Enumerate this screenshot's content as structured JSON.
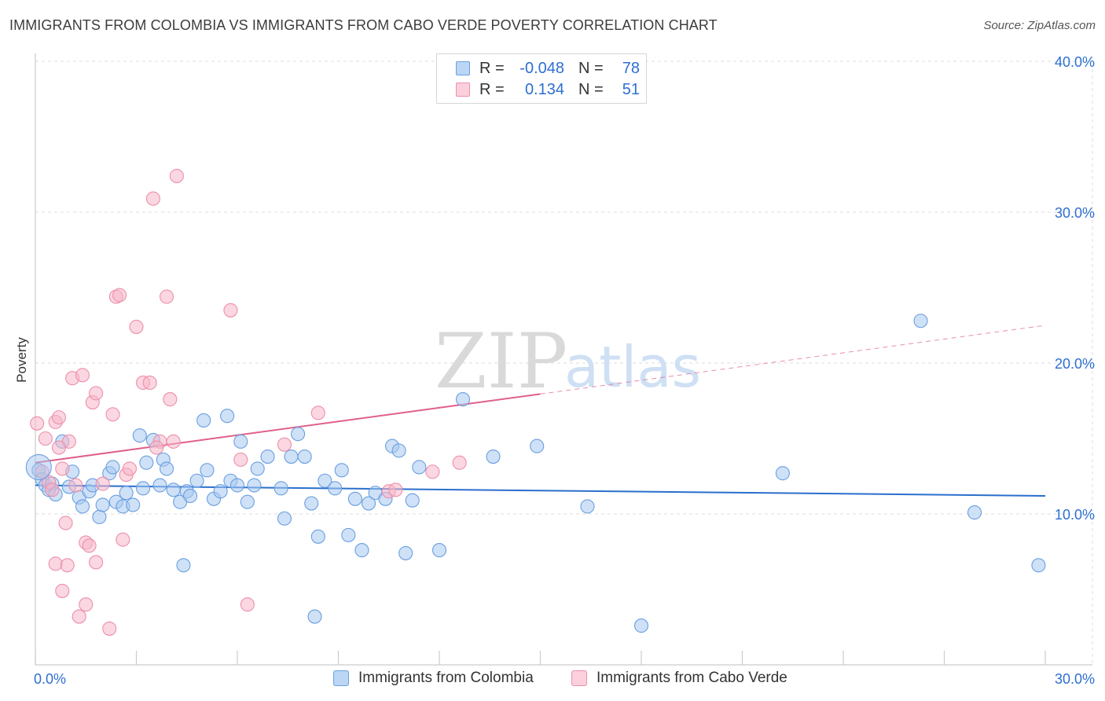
{
  "title": "IMMIGRANTS FROM COLOMBIA VS IMMIGRANTS FROM CABO VERDE POVERTY CORRELATION CHART",
  "source": "Source: ZipAtlas.com",
  "watermark": {
    "zip": "ZIP",
    "atlas": "atlas"
  },
  "legend": {
    "rows": [
      {
        "r_label": "R =",
        "r_value": "-0.048",
        "n_label": "N =",
        "n_value": "78"
      },
      {
        "r_label": "R =",
        "r_value": "0.134",
        "n_label": "N =",
        "n_value": "51"
      }
    ]
  },
  "colors": {
    "colombia_fill": "#a8c8f0",
    "colombia_stroke": "#6a9fe0",
    "colombia_line": "#2a6fcc",
    "caboverde_fill": "#f8b6c8",
    "caboverde_stroke": "#ec8fab",
    "caboverde_line": "#e0608a",
    "tick_text": "#2d6fd1",
    "grid": "#dddddd"
  },
  "chart_data": {
    "type": "scatter",
    "title": "IMMIGRANTS FROM COLOMBIA VS IMMIGRANTS FROM CABO VERDE POVERTY CORRELATION CHART",
    "xlabel": "",
    "ylabel": "Poverty",
    "xlim": [
      0,
      30
    ],
    "ylim": [
      0,
      40
    ],
    "x_tick_labels": [
      "0.0%",
      "30.0%"
    ],
    "y_ticks": [
      {
        "value": 10,
        "label": "10.0%"
      },
      {
        "value": 20,
        "label": "20.0%"
      },
      {
        "value": 30,
        "label": "30.0%"
      },
      {
        "value": 40,
        "label": "40.0%"
      }
    ],
    "series": [
      {
        "name": "Immigrants from Colombia",
        "trend": {
          "x0": 0,
          "y0": 11.9,
          "x1": 30,
          "y1": 11.2,
          "dashed_from": null
        },
        "points": [
          [
            0.1,
            12.9
          ],
          [
            0.2,
            12.3
          ],
          [
            0.3,
            11.9
          ],
          [
            0.4,
            11.6
          ],
          [
            0.5,
            12.0
          ],
          [
            0.6,
            11.3
          ],
          [
            0.8,
            14.8
          ],
          [
            1.0,
            11.8
          ],
          [
            1.1,
            12.8
          ],
          [
            1.3,
            11.1
          ],
          [
            1.4,
            10.5
          ],
          [
            1.6,
            11.5
          ],
          [
            1.7,
            11.9
          ],
          [
            1.9,
            9.8
          ],
          [
            2.0,
            10.6
          ],
          [
            2.2,
            12.7
          ],
          [
            2.3,
            13.1
          ],
          [
            2.4,
            10.8
          ],
          [
            2.6,
            10.5
          ],
          [
            2.7,
            11.4
          ],
          [
            2.9,
            10.6
          ],
          [
            3.1,
            15.2
          ],
          [
            3.2,
            11.7
          ],
          [
            3.3,
            13.4
          ],
          [
            3.5,
            14.9
          ],
          [
            3.7,
            11.9
          ],
          [
            3.8,
            13.6
          ],
          [
            3.9,
            13.0
          ],
          [
            4.1,
            11.6
          ],
          [
            4.3,
            10.8
          ],
          [
            4.5,
            11.5
          ],
          [
            4.6,
            11.2
          ],
          [
            4.8,
            12.2
          ],
          [
            5.0,
            16.2
          ],
          [
            5.1,
            12.9
          ],
          [
            5.3,
            11.0
          ],
          [
            5.5,
            11.5
          ],
          [
            5.7,
            16.5
          ],
          [
            5.8,
            12.2
          ],
          [
            6.0,
            11.9
          ],
          [
            6.1,
            14.8
          ],
          [
            6.3,
            10.8
          ],
          [
            6.5,
            11.9
          ],
          [
            6.6,
            13.0
          ],
          [
            6.9,
            13.8
          ],
          [
            7.3,
            11.7
          ],
          [
            7.4,
            9.7
          ],
          [
            7.6,
            13.8
          ],
          [
            7.8,
            15.3
          ],
          [
            8.0,
            13.8
          ],
          [
            8.2,
            10.7
          ],
          [
            8.4,
            8.5
          ],
          [
            8.6,
            12.2
          ],
          [
            8.9,
            11.7
          ],
          [
            9.1,
            12.9
          ],
          [
            9.3,
            8.6
          ],
          [
            9.5,
            11.0
          ],
          [
            9.7,
            7.6
          ],
          [
            9.9,
            10.7
          ],
          [
            10.1,
            11.4
          ],
          [
            10.4,
            11.0
          ],
          [
            10.6,
            14.5
          ],
          [
            10.8,
            14.2
          ],
          [
            11.0,
            7.4
          ],
          [
            11.2,
            10.9
          ],
          [
            11.4,
            13.1
          ],
          [
            12.0,
            7.6
          ],
          [
            12.7,
            17.6
          ],
          [
            13.6,
            13.8
          ],
          [
            14.9,
            14.5
          ],
          [
            16.4,
            10.5
          ],
          [
            18.0,
            2.6
          ],
          [
            22.2,
            12.7
          ],
          [
            26.3,
            22.8
          ],
          [
            27.9,
            10.1
          ],
          [
            29.8,
            6.6
          ],
          [
            4.4,
            6.6
          ],
          [
            8.3,
            3.2
          ]
        ]
      },
      {
        "name": "Immigrants from Cabo Verde",
        "trend": {
          "x0": 0,
          "y0": 13.4,
          "x1": 30,
          "y1": 22.5,
          "dashed_from": 15.0
        },
        "points": [
          [
            0.05,
            16.0
          ],
          [
            0.2,
            12.8
          ],
          [
            0.3,
            15.0
          ],
          [
            0.4,
            12.1
          ],
          [
            0.5,
            11.6
          ],
          [
            0.6,
            16.1
          ],
          [
            0.7,
            16.4
          ],
          [
            0.8,
            13.0
          ],
          [
            0.9,
            9.4
          ],
          [
            1.0,
            14.8
          ],
          [
            1.1,
            19.0
          ],
          [
            1.2,
            11.9
          ],
          [
            1.4,
            19.2
          ],
          [
            1.5,
            8.1
          ],
          [
            1.6,
            7.9
          ],
          [
            1.7,
            17.4
          ],
          [
            1.8,
            18.0
          ],
          [
            2.0,
            12.0
          ],
          [
            2.3,
            16.6
          ],
          [
            2.4,
            24.4
          ],
          [
            2.5,
            24.5
          ],
          [
            2.6,
            8.3
          ],
          [
            2.7,
            12.6
          ],
          [
            2.8,
            13.0
          ],
          [
            3.0,
            22.4
          ],
          [
            3.2,
            18.7
          ],
          [
            3.4,
            18.7
          ],
          [
            3.5,
            30.9
          ],
          [
            3.7,
            14.8
          ],
          [
            3.9,
            24.4
          ],
          [
            4.0,
            17.6
          ],
          [
            4.1,
            14.8
          ],
          [
            4.2,
            32.4
          ],
          [
            5.8,
            23.5
          ],
          [
            6.3,
            4.0
          ],
          [
            7.4,
            14.6
          ],
          [
            8.4,
            16.7
          ],
          [
            10.5,
            11.5
          ],
          [
            11.8,
            12.8
          ],
          [
            12.6,
            13.4
          ],
          [
            0.6,
            6.7
          ],
          [
            0.8,
            4.9
          ],
          [
            0.95,
            6.6
          ],
          [
            1.3,
            3.2
          ],
          [
            1.5,
            4.0
          ],
          [
            1.8,
            6.8
          ],
          [
            2.2,
            2.4
          ],
          [
            3.6,
            14.4
          ],
          [
            0.7,
            14.4
          ],
          [
            6.1,
            13.6
          ],
          [
            10.7,
            11.6
          ]
        ]
      }
    ]
  }
}
